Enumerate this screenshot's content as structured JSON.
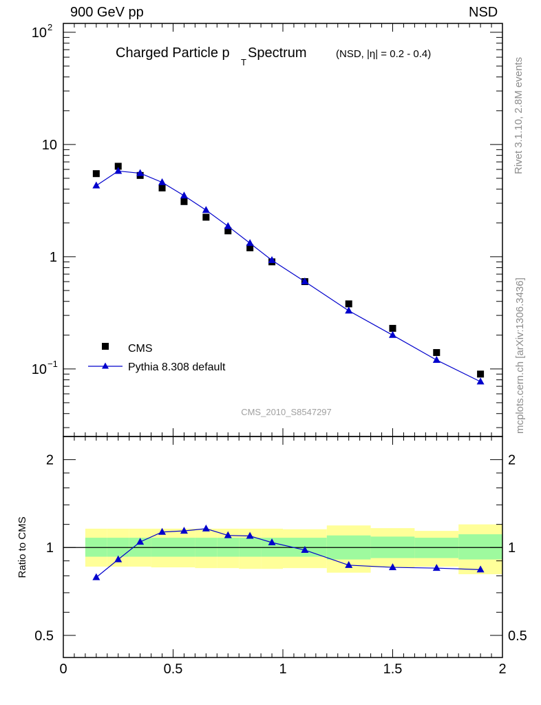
{
  "header": {
    "left": "900 GeV pp",
    "right": "NSD"
  },
  "side_labels": {
    "rivet": "Rivet 3.1.10,  2.8M events",
    "mcplots": "mcplots.cern.ch [arXiv:1306.3436]"
  },
  "chart_data": [
    {
      "type": "scatter",
      "title": "Charged Particle p",
      "title_sub": "T",
      "title_rest": " Spectrum",
      "title_small": "(NSD, |η| = 0.2 - 0.4)",
      "watermark": "CMS_2010_S8547297",
      "yscale": "log",
      "xlim": [
        0,
        2
      ],
      "ylim": [
        0.025,
        120
      ],
      "yticks": [
        {
          "v": 0.1,
          "label": "10",
          "sup": "−1"
        },
        {
          "v": 1,
          "label": "1",
          "sup": ""
        },
        {
          "v": 10,
          "label": "10",
          "sup": ""
        },
        {
          "v": 100,
          "label": "10",
          "sup": "2"
        }
      ],
      "legend_position": "bottom-left",
      "series": [
        {
          "name": "CMS",
          "marker": "square",
          "color": "#000000",
          "x": [
            0.15,
            0.25,
            0.35,
            0.45,
            0.55,
            0.65,
            0.75,
            0.85,
            0.95,
            1.1,
            1.3,
            1.5,
            1.7,
            1.9
          ],
          "y": [
            5.5,
            6.4,
            5.3,
            4.1,
            3.1,
            2.25,
            1.7,
            1.2,
            0.9,
            0.6,
            0.38,
            0.23,
            0.14,
            0.09
          ]
        },
        {
          "name": "Pythia 8.308 default",
          "marker": "triangle",
          "line": true,
          "color": "#0000cc",
          "x": [
            0.15,
            0.25,
            0.35,
            0.45,
            0.55,
            0.65,
            0.75,
            0.85,
            0.95,
            1.1,
            1.3,
            1.5,
            1.7,
            1.9
          ],
          "y": [
            4.3,
            5.8,
            5.55,
            4.6,
            3.5,
            2.6,
            1.87,
            1.32,
            0.93,
            0.6,
            0.33,
            0.2,
            0.12,
            0.077
          ]
        }
      ]
    },
    {
      "type": "line",
      "ylabel": "Ratio to CMS",
      "yscale": "log",
      "xlim": [
        0,
        2
      ],
      "ylim": [
        0.42,
        2.4
      ],
      "xticks": [
        0,
        0.5,
        1,
        1.5,
        2
      ],
      "xtick_labels": [
        "0",
        "0.5",
        "1",
        "1.5",
        "2"
      ],
      "yticks": [
        0.5,
        1,
        2
      ],
      "ytick_labels": [
        "0.5",
        "1",
        "2"
      ],
      "reference_line": 1,
      "uncertainty_bands": {
        "bins": [
          [
            0.1,
            0.2
          ],
          [
            0.2,
            0.3
          ],
          [
            0.3,
            0.4
          ],
          [
            0.4,
            0.5
          ],
          [
            0.5,
            0.6
          ],
          [
            0.6,
            0.7
          ],
          [
            0.7,
            0.8
          ],
          [
            0.8,
            0.9
          ],
          [
            0.9,
            1.0
          ],
          [
            1.0,
            1.2
          ],
          [
            1.2,
            1.4
          ],
          [
            1.4,
            1.6
          ],
          [
            1.6,
            1.8
          ],
          [
            1.8,
            2.0
          ]
        ],
        "inner": [
          [
            0.93,
            1.08
          ],
          [
            0.93,
            1.08
          ],
          [
            0.93,
            1.08
          ],
          [
            0.93,
            1.08
          ],
          [
            0.93,
            1.08
          ],
          [
            0.93,
            1.08
          ],
          [
            0.93,
            1.08
          ],
          [
            0.93,
            1.08
          ],
          [
            0.93,
            1.08
          ],
          [
            0.93,
            1.08
          ],
          [
            0.91,
            1.1
          ],
          [
            0.92,
            1.09
          ],
          [
            0.92,
            1.08
          ],
          [
            0.91,
            1.11
          ]
        ],
        "outer": [
          [
            0.86,
            1.16
          ],
          [
            0.86,
            1.16
          ],
          [
            0.86,
            1.16
          ],
          [
            0.855,
            1.16
          ],
          [
            0.855,
            1.16
          ],
          [
            0.85,
            1.16
          ],
          [
            0.85,
            1.16
          ],
          [
            0.845,
            1.16
          ],
          [
            0.845,
            1.16
          ],
          [
            0.85,
            1.155
          ],
          [
            0.82,
            1.19
          ],
          [
            0.855,
            1.165
          ],
          [
            0.86,
            1.14
          ],
          [
            0.81,
            1.2
          ]
        ],
        "inner_color": "#9efa9e",
        "outer_color": "#ffff99"
      },
      "series": [
        {
          "name": "Pythia 8.308 default",
          "marker": "triangle",
          "color": "#0000cc",
          "x": [
            0.15,
            0.25,
            0.35,
            0.45,
            0.55,
            0.65,
            0.75,
            0.85,
            0.95,
            1.1,
            1.3,
            1.5,
            1.7,
            1.9
          ],
          "y": [
            0.79,
            0.91,
            1.045,
            1.13,
            1.14,
            1.16,
            1.1,
            1.095,
            1.04,
            0.98,
            0.87,
            0.855,
            0.85,
            0.84
          ]
        }
      ]
    }
  ]
}
